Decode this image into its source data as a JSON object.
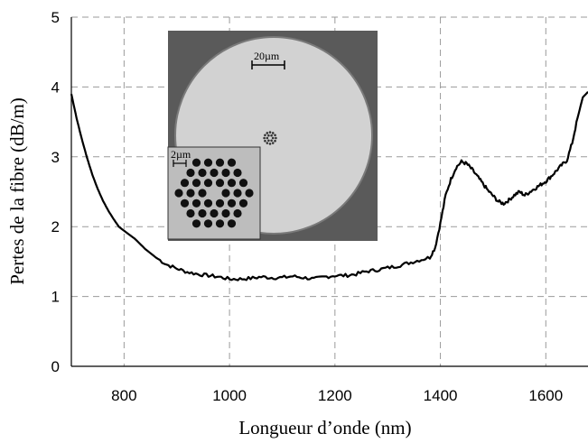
{
  "chart_data": {
    "type": "line",
    "title": "",
    "xlabel": "Longueur d’onde (nm)",
    "ylabel": "Pertes de la fibre (dB/m)",
    "xlim": [
      700,
      1680
    ],
    "ylim": [
      0,
      5
    ],
    "x_ticks": [
      800,
      1000,
      1200,
      1400,
      1600
    ],
    "y_ticks": [
      0,
      1,
      2,
      3,
      4,
      5
    ],
    "grid": true,
    "legend": "none",
    "line_color": "#000000",
    "series": [
      {
        "x": [
          700,
          710,
          720,
          730,
          740,
          750,
          760,
          770,
          780,
          790,
          800,
          820,
          840,
          860,
          880,
          900,
          920,
          940,
          960,
          980,
          1000,
          1020,
          1040,
          1060,
          1080,
          1100,
          1120,
          1140,
          1160,
          1180,
          1200,
          1220,
          1240,
          1260,
          1280,
          1300,
          1320,
          1340,
          1360,
          1380,
          1390,
          1400,
          1410,
          1420,
          1430,
          1440,
          1450,
          1460,
          1470,
          1480,
          1490,
          1500,
          1510,
          1520,
          1530,
          1540,
          1550,
          1560,
          1570,
          1580,
          1590,
          1600,
          1610,
          1620,
          1630,
          1640,
          1650,
          1660,
          1670,
          1680
        ],
        "y": [
          3.9,
          3.55,
          3.25,
          2.98,
          2.74,
          2.54,
          2.37,
          2.23,
          2.11,
          2.0,
          1.94,
          1.83,
          1.68,
          1.56,
          1.46,
          1.4,
          1.35,
          1.32,
          1.3,
          1.28,
          1.25,
          1.25,
          1.26,
          1.28,
          1.27,
          1.27,
          1.29,
          1.27,
          1.25,
          1.28,
          1.3,
          1.3,
          1.32,
          1.36,
          1.38,
          1.41,
          1.44,
          1.48,
          1.52,
          1.56,
          1.7,
          2.05,
          2.45,
          2.68,
          2.85,
          2.93,
          2.9,
          2.82,
          2.72,
          2.62,
          2.52,
          2.44,
          2.36,
          2.33,
          2.38,
          2.45,
          2.5,
          2.45,
          2.5,
          2.55,
          2.6,
          2.65,
          2.72,
          2.8,
          2.88,
          2.95,
          3.2,
          3.55,
          3.85,
          3.93
        ]
      }
    ]
  },
  "inset": {
    "scale_main": "20µm",
    "scale_detail": "2µm"
  }
}
